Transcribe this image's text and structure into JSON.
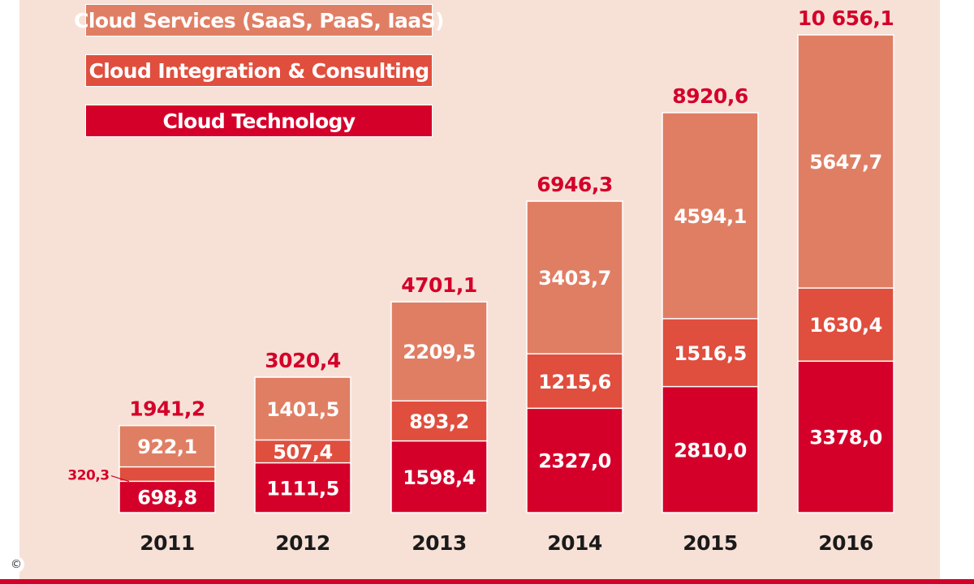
{
  "copyright_symbol": "©",
  "chart_data": {
    "type": "bar",
    "stacked": true,
    "categories": [
      "2011",
      "2012",
      "2013",
      "2014",
      "2015",
      "2016"
    ],
    "series": [
      {
        "name": "Cloud Technology",
        "color": "#d4002a",
        "values": [
          698.8,
          1111.5,
          1598.4,
          2327.0,
          2810.0,
          3378.0
        ],
        "labels": [
          "698,8",
          "1111,5",
          "1598,4",
          "2327,0",
          "2810,0",
          "3378,0"
        ]
      },
      {
        "name": "Cloud Integration & Consulting",
        "color": "#e04e3e",
        "values": [
          320.3,
          507.4,
          893.2,
          1215.6,
          1516.5,
          1630.4
        ],
        "labels": [
          "320,3",
          "507,4",
          "893,2",
          "1215,6",
          "1516,5",
          "1630,4"
        ]
      },
      {
        "name": "Cloud Services (SaaS, PaaS, IaaS)",
        "color": "#e07e64",
        "values": [
          922.1,
          1401.5,
          2209.5,
          3403.7,
          4594.1,
          5647.7
        ],
        "labels": [
          "922,1",
          "1401,5",
          "2209,5",
          "3403,7",
          "4594,1",
          "5647,7"
        ]
      }
    ],
    "totals": [
      1941.2,
      3020.4,
      4701.1,
      6946.3,
      8920.6,
      10656.1
    ],
    "total_labels": [
      "1941,2",
      "3020,4",
      "4701,1",
      "6946,3",
      "8920,6",
      "10 656,1"
    ],
    "legend_order": [
      "Cloud Services (SaaS, PaaS, IaaS)",
      "Cloud Integration & Consulting",
      "Cloud Technology"
    ],
    "legend_position": "top-left",
    "title": "",
    "xlabel": "",
    "ylabel": "",
    "ylim": [
      0,
      10656.1
    ],
    "grid": false,
    "y_axis_visible": false
  }
}
